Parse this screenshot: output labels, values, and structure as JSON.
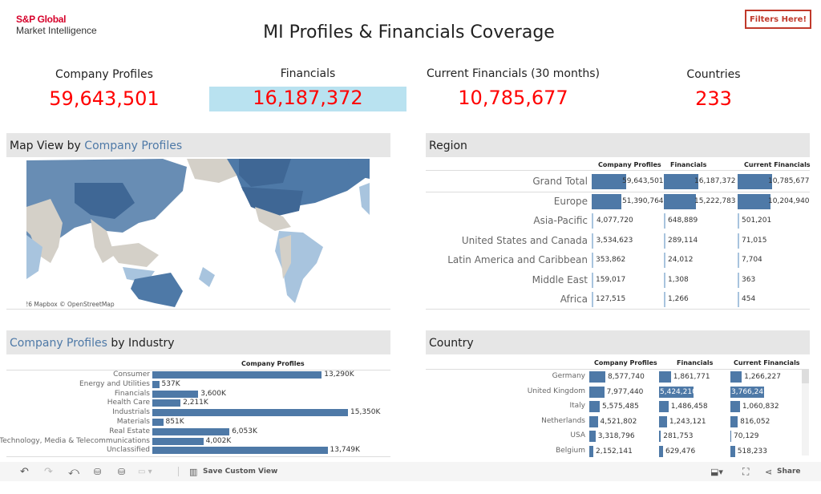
{
  "header": {
    "logo_line1": "S&P Global",
    "logo_line2": "Market Intelligence",
    "title": "MI Profiles & Financials Coverage",
    "filters_button": "Filters Here!"
  },
  "kpis": [
    {
      "label": "Company Profiles",
      "value": "59,643,501"
    },
    {
      "label": "Financials",
      "value": "16,187,372",
      "highlighted": true
    },
    {
      "label": "Current Financials (30 months)",
      "value": "10,785,677"
    },
    {
      "label": "Countries",
      "value": "233"
    }
  ],
  "map": {
    "title_prefix": "Map View by ",
    "title_highlight": "Company Profiles",
    "attribution": "© 2026 Mapbox  © OpenStreetMap"
  },
  "region": {
    "title": "Region",
    "columns": [
      "Company Profiles",
      "Financials",
      "Current Financials"
    ],
    "rows": [
      {
        "label": "Grand Total",
        "values": [
          "59,643,501",
          "16,187,372",
          "10,785,677"
        ],
        "raw": [
          59643501,
          16187372,
          10785677
        ]
      },
      {
        "label": "Europe",
        "values": [
          "51,390,764",
          "15,222,783",
          "10,204,940"
        ],
        "raw": [
          51390764,
          15222783,
          10204940
        ]
      },
      {
        "label": "Asia-Pacific",
        "values": [
          "4,077,720",
          "648,889",
          "501,201"
        ],
        "raw": [
          4077720,
          648889,
          501201
        ]
      },
      {
        "label": "United States and Canada",
        "values": [
          "3,534,623",
          "289,114",
          "71,015"
        ],
        "raw": [
          3534623,
          289114,
          71015
        ]
      },
      {
        "label": "Latin America and Caribbean",
        "values": [
          "353,862",
          "24,012",
          "7,704"
        ],
        "raw": [
          353862,
          24012,
          7704
        ]
      },
      {
        "label": "Middle East",
        "values": [
          "159,017",
          "1,308",
          "363"
        ],
        "raw": [
          159017,
          1308,
          363
        ]
      },
      {
        "label": "Africa",
        "values": [
          "127,515",
          "1,266",
          "454"
        ],
        "raw": [
          127515,
          1266,
          454
        ]
      }
    ]
  },
  "industry": {
    "title_highlight": "Company Profiles",
    "title_suffix": " by Industry",
    "column": "Company Profiles",
    "rows": [
      {
        "label": "Consumer",
        "value": "13,290K",
        "raw": 13290
      },
      {
        "label": "Energy and Utilities",
        "value": "537K",
        "raw": 537
      },
      {
        "label": "Financials",
        "value": "3,600K",
        "raw": 3600
      },
      {
        "label": "Health Care",
        "value": "2,211K",
        "raw": 2211
      },
      {
        "label": "Industrials",
        "value": "15,350K",
        "raw": 15350
      },
      {
        "label": "Materials",
        "value": "851K",
        "raw": 851
      },
      {
        "label": "Real Estate",
        "value": "6,053K",
        "raw": 6053
      },
      {
        "label": "Technology, Media & Telecommunications",
        "value": "4,002K",
        "raw": 4002
      },
      {
        "label": "Unclassified",
        "value": "13,749K",
        "raw": 13749
      }
    ]
  },
  "country": {
    "title": "Country",
    "columns": [
      "Company Profiles",
      "Financials",
      "Current Financials"
    ],
    "rows": [
      {
        "label": "Germany",
        "values": [
          "8,577,740",
          "1,861,771",
          "1,266,227"
        ],
        "raw": [
          8577740,
          1861771,
          1266227
        ]
      },
      {
        "label": "United Kingdom",
        "values": [
          "7,977,440",
          "5,424,210",
          "3,766,247"
        ],
        "raw": [
          7977440,
          5424210,
          3766247
        ]
      },
      {
        "label": "Italy",
        "values": [
          "5,575,485",
          "1,486,458",
          "1,060,832"
        ],
        "raw": [
          5575485,
          1486458,
          1060832
        ]
      },
      {
        "label": "Netherlands",
        "values": [
          "4,521,802",
          "1,243,121",
          "816,052"
        ],
        "raw": [
          4521802,
          1243121,
          816052
        ]
      },
      {
        "label": "USA",
        "values": [
          "3,318,796",
          "281,753",
          "70,129"
        ],
        "raw": [
          3318796,
          281753,
          70129
        ]
      },
      {
        "label": "Belgium",
        "values": [
          "2,152,141",
          "629,476",
          "518,233"
        ],
        "raw": [
          2152141,
          629476,
          518233
        ]
      }
    ]
  },
  "toolbar": {
    "save_custom_view": "Save Custom View",
    "share": "Share"
  },
  "colors": {
    "accent": "#4e79a7",
    "kpi_value": "#ff0000",
    "kpi_highlight": "#b9e2f0",
    "filters": "#c0392b"
  }
}
